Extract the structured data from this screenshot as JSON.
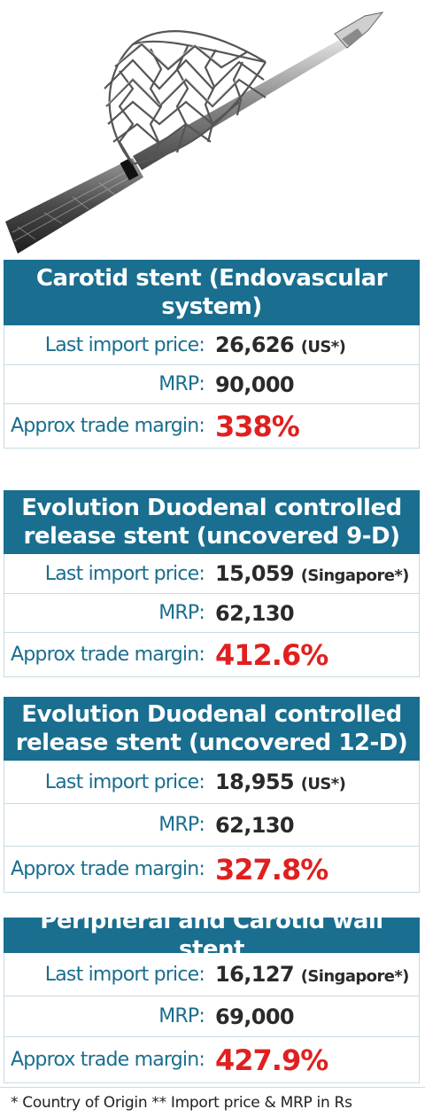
{
  "image": {
    "icon": "carotid-stent-illustration"
  },
  "colors": {
    "header_bg": "#1a6e8f",
    "label": "#1a6e8f",
    "value": "#2a2a2a",
    "margin": "#e02020"
  },
  "sections": [
    {
      "title": "Carotid stent (Endovascular system)",
      "last_import_label": "Last import price:",
      "last_import_value": "26,626",
      "last_import_country": "(US*)",
      "mrp_label": "MRP:",
      "mrp_value": "90,000",
      "margin_label": "Approx trade margin:",
      "margin_value": "338%"
    },
    {
      "title": "Evolution Duodenal controlled release stent (uncovered 9-D)",
      "last_import_label": "Last import price:",
      "last_import_value": "15,059",
      "last_import_country": "(Singapore*)",
      "mrp_label": "MRP:",
      "mrp_value": "62,130",
      "margin_label": "Approx trade margin:",
      "margin_value": "412.6%"
    },
    {
      "title": "Evolution Duodenal controlled release stent (uncovered 12-D)",
      "last_import_label": "Last import price:",
      "last_import_value": "18,955",
      "last_import_country": "(US*)",
      "mrp_label": "MRP:",
      "mrp_value": "62,130",
      "margin_label": "Approx trade margin:",
      "margin_value": "327.8%"
    },
    {
      "title": "Peripheral and Carotid wall stent",
      "last_import_label": "Last import price:",
      "last_import_value": "16,127",
      "last_import_country": "(Singapore*)",
      "mrp_label": "MRP:",
      "mrp_value": "69,000",
      "margin_label": "Approx trade margin:",
      "margin_value": "427.9%"
    }
  ],
  "footnote": "* Country of Origin ** Import price & MRP in Rs"
}
